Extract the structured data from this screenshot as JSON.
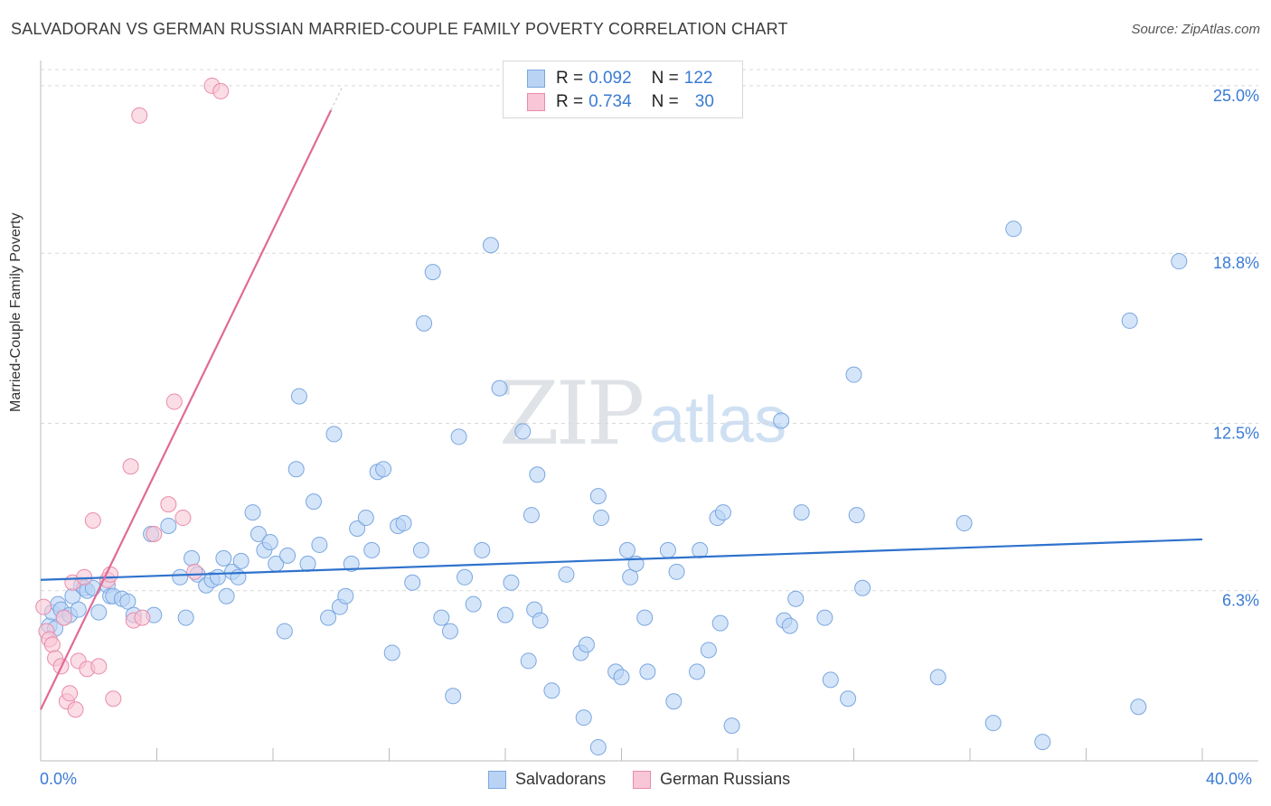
{
  "header": {
    "title": "SALVADORAN VS GERMAN RUSSIAN MARRIED-COUPLE FAMILY POVERTY CORRELATION CHART",
    "source": "Source: ZipAtlas.com"
  },
  "watermark": {
    "zip": "ZIP",
    "atlas": "atlas"
  },
  "legend": {
    "rows": [
      {
        "r_label": "R = ",
        "r_value": "0.092",
        "n_label": "N = ",
        "n_value": "122"
      },
      {
        "r_label": "R = ",
        "r_value": "0.734",
        "n_label": "N = ",
        "n_value": "30"
      }
    ]
  },
  "bottom_legend": {
    "series1": "Salvadorans",
    "series2": "German Russians"
  },
  "axis": {
    "x_min_label": "0.0%",
    "x_max_label": "40.0%",
    "ylabel": "Married-Couple Family Poverty"
  },
  "colors": {
    "blue_fill": "#b9d3f5",
    "blue_stroke": "#7aa7e0",
    "blue_line": "#2f72cc",
    "pink_fill": "#f8c6d6",
    "pink_stroke": "#e98cab",
    "pink_line": "#e06a96",
    "grid": "#d9d9d9",
    "tick_label": "#3a7bd5"
  },
  "chart_data": {
    "type": "scatter",
    "title": "SALVADORAN VS GERMAN RUSSIAN MARRIED-COUPLE FAMILY POVERTY CORRELATION CHART",
    "xlabel": "",
    "ylabel": "Married-Couple Family Poverty",
    "xlim": [
      0,
      40
    ],
    "ylim": [
      0,
      25.6
    ],
    "y_ticks": [
      6.3,
      12.5,
      18.8,
      25.0
    ],
    "y_tick_labels": [
      "6.3%",
      "12.5%",
      "18.8%",
      "25.0%"
    ],
    "x_tick_labels": [
      "0.0%",
      "40.0%"
    ],
    "grid": true,
    "legend_position": "top-center",
    "series": [
      {
        "name": "Salvadorans",
        "R": 0.092,
        "N": 122,
        "trend": {
          "x": [
            0,
            40
          ],
          "y": [
            6.7,
            8.2
          ]
        },
        "points": [
          [
            0.3,
            5.0
          ],
          [
            0.4,
            5.5
          ],
          [
            0.5,
            4.9
          ],
          [
            0.6,
            5.8
          ],
          [
            0.7,
            5.6
          ],
          [
            0.8,
            5.3
          ],
          [
            1.0,
            5.4
          ],
          [
            1.1,
            6.1
          ],
          [
            1.3,
            5.6
          ],
          [
            1.4,
            6.5
          ],
          [
            1.5,
            6.4
          ],
          [
            1.6,
            6.3
          ],
          [
            1.8,
            6.4
          ],
          [
            2.0,
            5.5
          ],
          [
            2.3,
            6.5
          ],
          [
            2.4,
            6.1
          ],
          [
            2.5,
            6.1
          ],
          [
            2.8,
            6.0
          ],
          [
            3.0,
            5.9
          ],
          [
            3.2,
            5.4
          ],
          [
            3.8,
            8.4
          ],
          [
            3.9,
            5.4
          ],
          [
            4.4,
            8.7
          ],
          [
            4.8,
            6.8
          ],
          [
            5.0,
            5.3
          ],
          [
            5.2,
            7.5
          ],
          [
            5.4,
            6.9
          ],
          [
            5.7,
            6.5
          ],
          [
            5.9,
            6.7
          ],
          [
            6.1,
            6.8
          ],
          [
            6.3,
            7.5
          ],
          [
            6.4,
            6.1
          ],
          [
            6.6,
            7.0
          ],
          [
            6.8,
            6.8
          ],
          [
            6.9,
            7.4
          ],
          [
            7.3,
            9.2
          ],
          [
            7.5,
            8.4
          ],
          [
            7.7,
            7.8
          ],
          [
            7.9,
            8.1
          ],
          [
            8.1,
            7.3
          ],
          [
            8.4,
            4.8
          ],
          [
            8.5,
            7.6
          ],
          [
            8.8,
            10.8
          ],
          [
            8.9,
            13.5
          ],
          [
            9.2,
            7.3
          ],
          [
            9.4,
            9.6
          ],
          [
            9.6,
            8.0
          ],
          [
            9.9,
            5.3
          ],
          [
            10.1,
            12.1
          ],
          [
            10.3,
            5.7
          ],
          [
            10.5,
            6.1
          ],
          [
            10.7,
            7.3
          ],
          [
            10.9,
            8.6
          ],
          [
            11.2,
            9.0
          ],
          [
            11.4,
            7.8
          ],
          [
            11.6,
            10.7
          ],
          [
            11.8,
            10.8
          ],
          [
            12.3,
            8.7
          ],
          [
            12.1,
            4.0
          ],
          [
            12.5,
            8.8
          ],
          [
            12.8,
            6.6
          ],
          [
            13.1,
            7.8
          ],
          [
            13.2,
            16.2
          ],
          [
            13.5,
            18.1
          ],
          [
            13.8,
            5.3
          ],
          [
            14.1,
            4.8
          ],
          [
            14.2,
            2.4
          ],
          [
            14.4,
            12.0
          ],
          [
            14.6,
            6.8
          ],
          [
            14.9,
            5.8
          ],
          [
            15.2,
            7.8
          ],
          [
            15.5,
            19.1
          ],
          [
            15.8,
            13.8
          ],
          [
            16.0,
            5.4
          ],
          [
            16.2,
            6.6
          ],
          [
            16.6,
            12.2
          ],
          [
            16.8,
            3.7
          ],
          [
            16.9,
            9.1
          ],
          [
            17.0,
            5.6
          ],
          [
            17.1,
            10.6
          ],
          [
            17.2,
            5.2
          ],
          [
            17.6,
            2.6
          ],
          [
            18.1,
            6.9
          ],
          [
            18.6,
            4.0
          ],
          [
            18.7,
            1.6
          ],
          [
            18.8,
            4.3
          ],
          [
            19.2,
            0.5
          ],
          [
            19.2,
            9.8
          ],
          [
            19.3,
            9.0
          ],
          [
            19.8,
            3.3
          ],
          [
            20.0,
            3.1
          ],
          [
            20.2,
            7.8
          ],
          [
            20.3,
            6.8
          ],
          [
            20.5,
            7.3
          ],
          [
            20.8,
            5.3
          ],
          [
            20.9,
            3.3
          ],
          [
            21.6,
            7.8
          ],
          [
            21.8,
            2.2
          ],
          [
            21.9,
            7.0
          ],
          [
            22.6,
            3.3
          ],
          [
            22.7,
            7.8
          ],
          [
            23.0,
            4.1
          ],
          [
            23.3,
            9.0
          ],
          [
            23.4,
            5.1
          ],
          [
            23.5,
            9.2
          ],
          [
            23.8,
            1.3
          ],
          [
            25.5,
            12.6
          ],
          [
            25.6,
            5.2
          ],
          [
            25.8,
            5.0
          ],
          [
            26.2,
            9.2
          ],
          [
            26.0,
            6.0
          ],
          [
            27.0,
            5.3
          ],
          [
            27.2,
            3.0
          ],
          [
            27.8,
            2.3
          ],
          [
            28.0,
            14.3
          ],
          [
            28.1,
            9.1
          ],
          [
            28.3,
            6.4
          ],
          [
            30.9,
            3.1
          ],
          [
            31.8,
            8.8
          ],
          [
            32.8,
            1.4
          ],
          [
            33.5,
            19.7
          ],
          [
            34.5,
            0.7
          ],
          [
            37.5,
            16.3
          ],
          [
            37.8,
            2.0
          ],
          [
            39.2,
            18.5
          ]
        ]
      },
      {
        "name": "German Russians",
        "R": 0.734,
        "N": 30,
        "trend": {
          "x": [
            0,
            10
          ],
          "y": [
            1.9,
            24.1
          ]
        },
        "points": [
          [
            0.1,
            5.7
          ],
          [
            0.2,
            4.8
          ],
          [
            0.3,
            4.5
          ],
          [
            0.4,
            4.3
          ],
          [
            0.5,
            3.8
          ],
          [
            0.7,
            3.5
          ],
          [
            0.8,
            5.3
          ],
          [
            0.9,
            2.2
          ],
          [
            1.0,
            2.5
          ],
          [
            1.1,
            6.6
          ],
          [
            1.2,
            1.9
          ],
          [
            1.3,
            3.7
          ],
          [
            1.5,
            6.8
          ],
          [
            1.6,
            3.4
          ],
          [
            1.8,
            8.9
          ],
          [
            2.0,
            3.5
          ],
          [
            2.3,
            6.7
          ],
          [
            2.5,
            2.3
          ],
          [
            3.1,
            10.9
          ],
          [
            3.2,
            5.2
          ],
          [
            3.5,
            5.3
          ],
          [
            3.9,
            8.4
          ],
          [
            4.4,
            9.5
          ],
          [
            4.6,
            13.3
          ],
          [
            4.9,
            9.0
          ],
          [
            5.3,
            7.0
          ],
          [
            5.9,
            25.0
          ],
          [
            6.2,
            24.8
          ],
          [
            3.4,
            23.9
          ],
          [
            2.4,
            6.9
          ]
        ]
      }
    ]
  }
}
